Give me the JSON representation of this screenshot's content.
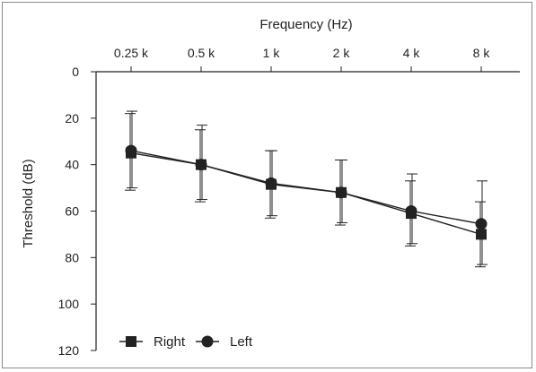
{
  "chart_data": {
    "type": "line",
    "title": "",
    "xlabel": "Frequency (Hz)",
    "ylabel": "Threshold (dB)",
    "categories": [
      "0.25 k",
      "0.5 k",
      "1 k",
      "2 k",
      "4 k",
      "8 k"
    ],
    "x_axis_position": "top",
    "y_axis_inverted": true,
    "ylim": [
      0,
      120
    ],
    "yticks": [
      "0",
      "20",
      "40",
      "60",
      "80",
      "100",
      "120"
    ],
    "grid": false,
    "legend_position": "bottom-left",
    "series": [
      {
        "name": "Right",
        "marker": "square",
        "values": [
          35,
          40,
          48.5,
          52,
          61,
          70
        ],
        "err_low": [
          51,
          56,
          63,
          66,
          75,
          84
        ],
        "err_high": [
          18,
          25,
          34,
          38,
          47,
          56
        ]
      },
      {
        "name": "Left",
        "marker": "circle",
        "values": [
          34,
          40,
          48,
          52,
          60,
          65.5
        ],
        "err_low": [
          50,
          55,
          62,
          65,
          74,
          83
        ],
        "err_high": [
          17,
          23,
          34,
          38,
          44,
          47
        ]
      }
    ]
  }
}
